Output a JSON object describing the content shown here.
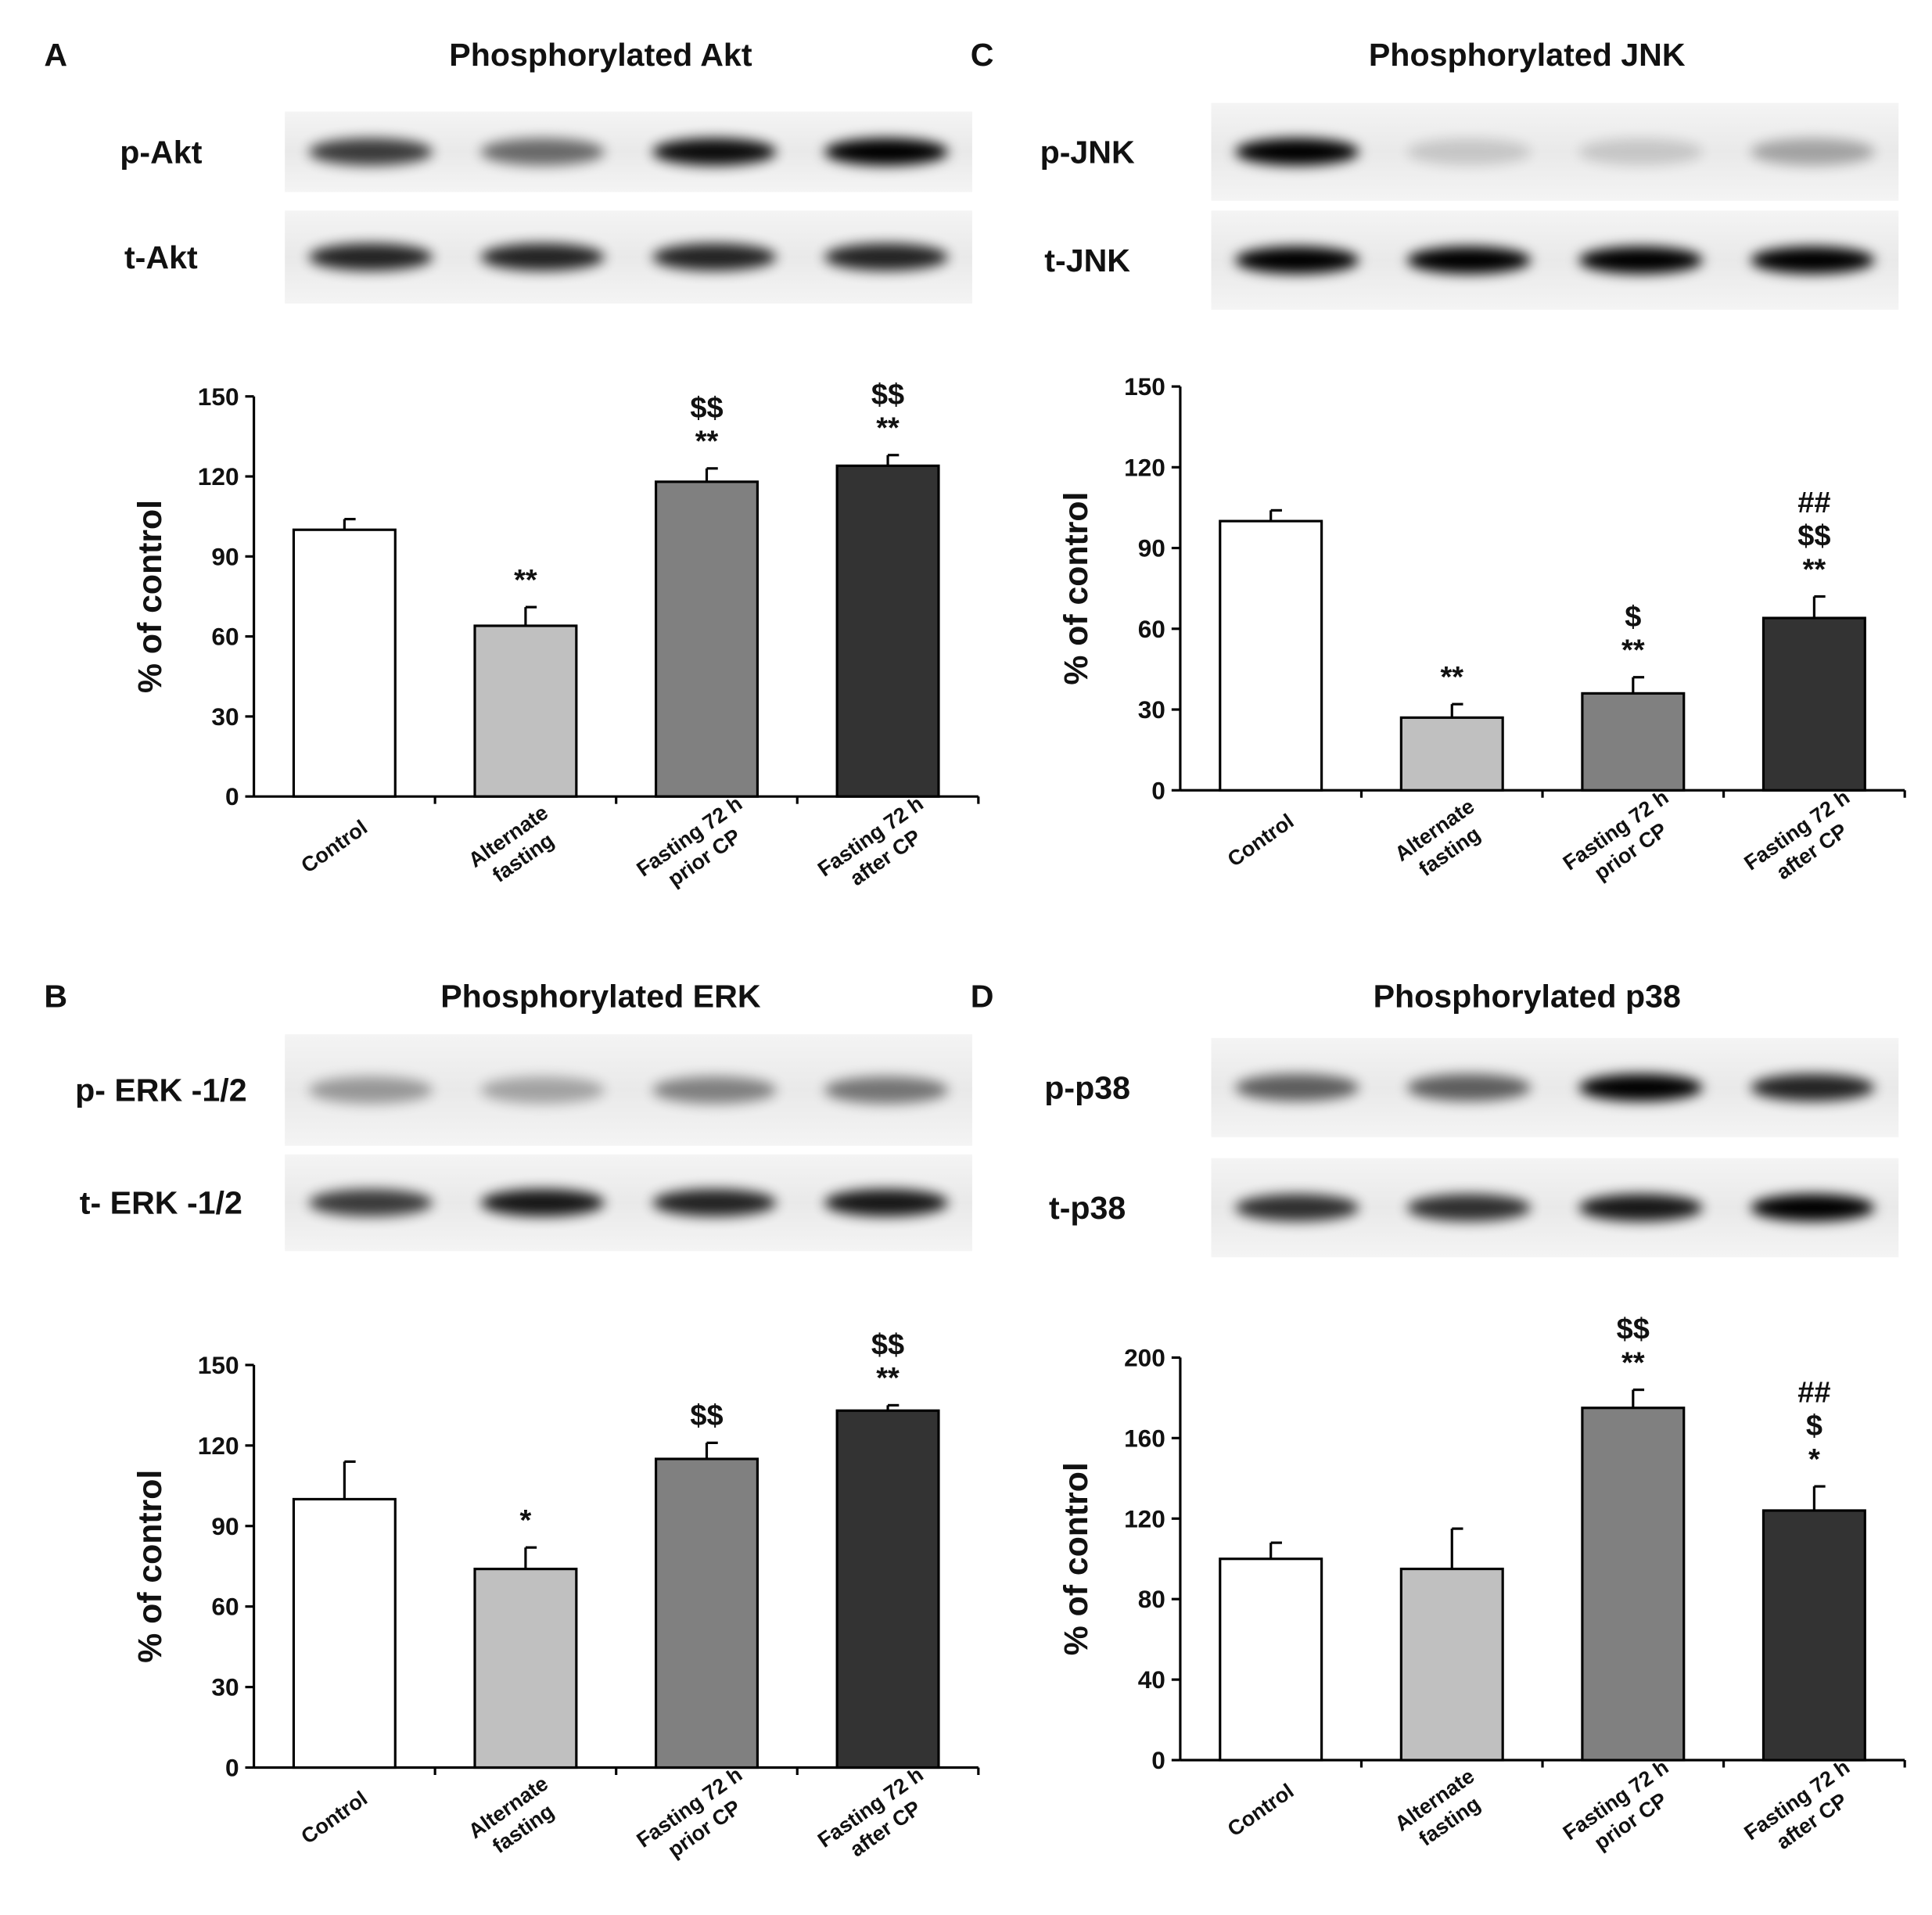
{
  "chart_data": [
    {
      "type": "bar",
      "panel": "A",
      "title": "Phosphorylated Akt",
      "blot_labels": [
        "p-Akt",
        "t-Akt"
      ],
      "y_label": "% of control",
      "categories": [
        [
          "Control"
        ],
        [
          "Alternate",
          "fasting"
        ],
        [
          "Fasting 72 h",
          "prior CP"
        ],
        [
          "Fasting 72 h",
          "after CP"
        ]
      ],
      "values": [
        100,
        64,
        118,
        124
      ],
      "errors": [
        4,
        7,
        5,
        4
      ],
      "colors": [
        "#ffffff",
        "#c0c0c0",
        "#808080",
        "#333333"
      ],
      "annotations": [
        null,
        [
          "**"
        ],
        [
          "$$",
          "**"
        ],
        [
          "$$",
          "**"
        ]
      ],
      "ylim": [
        0,
        150
      ],
      "yticks": [
        0,
        30,
        60,
        90,
        120,
        150
      ]
    },
    {
      "type": "bar",
      "panel": "B",
      "title": "Phosphorylated ERK",
      "blot_labels": [
        "p- ERK -1/2",
        "t- ERK -1/2"
      ],
      "y_label": "% of control",
      "categories": [
        [
          "Control"
        ],
        [
          "Alternate",
          "fasting"
        ],
        [
          "Fasting 72 h",
          "prior CP"
        ],
        [
          "Fasting 72 h",
          "after CP"
        ]
      ],
      "values": [
        100,
        74,
        115,
        133
      ],
      "errors": [
        14,
        8,
        6,
        2
      ],
      "colors": [
        "#ffffff",
        "#c0c0c0",
        "#808080",
        "#333333"
      ],
      "annotations": [
        null,
        [
          "*"
        ],
        [
          "$$"
        ],
        [
          "$$",
          "**"
        ]
      ],
      "ylim": [
        0,
        150
      ],
      "yticks": [
        0,
        30,
        60,
        90,
        120,
        150
      ]
    },
    {
      "type": "bar",
      "panel": "C",
      "title": "Phosphorylated JNK",
      "blot_labels": [
        "p-JNK",
        "t-JNK"
      ],
      "y_label": "% of control",
      "categories": [
        [
          "Control"
        ],
        [
          "Alternate",
          "fasting"
        ],
        [
          "Fasting 72 h",
          "prior CP"
        ],
        [
          "Fasting 72 h",
          "after CP"
        ]
      ],
      "values": [
        100,
        27,
        36,
        64
      ],
      "errors": [
        4,
        5,
        6,
        8
      ],
      "colors": [
        "#ffffff",
        "#c0c0c0",
        "#808080",
        "#333333"
      ],
      "annotations": [
        null,
        [
          "**"
        ],
        [
          "$",
          "**"
        ],
        [
          "##",
          "$$",
          "**"
        ]
      ],
      "ylim": [
        0,
        150
      ],
      "yticks": [
        0,
        30,
        60,
        90,
        120,
        150
      ]
    },
    {
      "type": "bar",
      "panel": "D",
      "title": "Phosphorylated p38",
      "blot_labels": [
        "p-p38",
        "t-p38"
      ],
      "y_label": "% of control",
      "categories": [
        [
          "Control"
        ],
        [
          "Alternate",
          "fasting"
        ],
        [
          "Fasting 72 h",
          "prior CP"
        ],
        [
          "Fasting 72 h",
          "after CP"
        ]
      ],
      "values": [
        100,
        95,
        175,
        124
      ],
      "errors": [
        8,
        20,
        9,
        12
      ],
      "colors": [
        "#ffffff",
        "#c0c0c0",
        "#808080",
        "#333333"
      ],
      "annotations": [
        null,
        null,
        [
          "$$",
          "**"
        ],
        [
          "##",
          "$",
          "*"
        ]
      ],
      "ylim": [
        0,
        200
      ],
      "yticks": [
        0,
        40,
        80,
        120,
        160,
        200
      ]
    }
  ]
}
